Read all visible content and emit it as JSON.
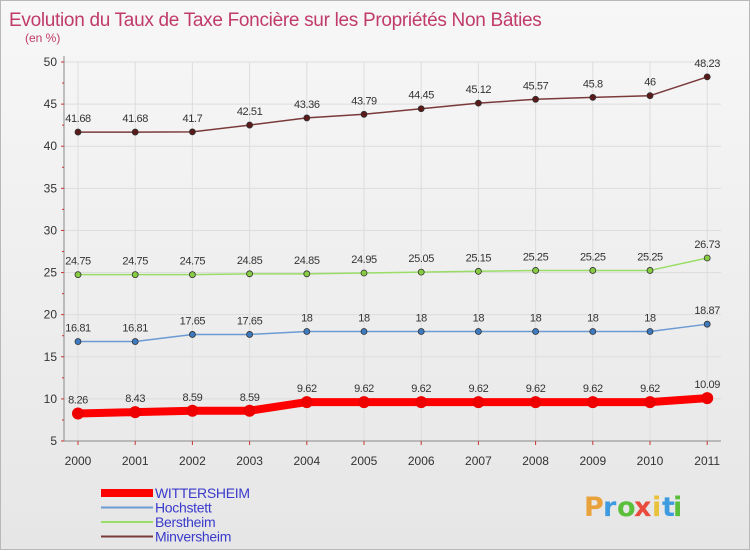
{
  "chart_data": {
    "type": "line",
    "title": "Evolution du Taux de Taxe Foncière sur les Propriétés Non Bâties",
    "subtitle": "(en %)",
    "xlabel": "",
    "ylabel": "(en %)",
    "ylim": [
      5,
      50
    ],
    "yticks": [
      "5",
      "10",
      "15",
      "20",
      "25",
      "30",
      "35",
      "40",
      "45",
      "50"
    ],
    "categories": [
      "2000",
      "2001",
      "2002",
      "2003",
      "2004",
      "2005",
      "2006",
      "2007",
      "2008",
      "2009",
      "2010",
      "2011"
    ],
    "grid": true,
    "legend_position": "bottom-left",
    "series": [
      {
        "name": "WITTERSHEIM",
        "color": "#ff0000",
        "point_color": "#ee0000",
        "emphasis": "thick",
        "values": [
          8.26,
          8.43,
          8.59,
          8.59,
          9.62,
          9.62,
          9.62,
          9.62,
          9.62,
          9.62,
          9.62,
          10.09
        ],
        "labels": [
          "8.26",
          "8.43",
          "8.59",
          "8.59",
          "9.62",
          "9.62",
          "9.62",
          "9.62",
          "9.62",
          "9.62",
          "9.62",
          "10.09"
        ]
      },
      {
        "name": "Hochstett",
        "color": "#6b9bd2",
        "point_color": "#3d7ac0",
        "emphasis": "normal",
        "values": [
          16.81,
          16.81,
          17.65,
          17.65,
          18,
          18,
          18,
          18,
          18,
          18,
          18,
          18.87
        ],
        "labels": [
          "16.81",
          "16.81",
          "17.65",
          "17.65",
          "18",
          "18",
          "18",
          "18",
          "18",
          "18",
          "18",
          "18.87"
        ]
      },
      {
        "name": "Berstheim",
        "color": "#99dd66",
        "point_color": "#88cc44",
        "emphasis": "normal",
        "values": [
          24.75,
          24.75,
          24.75,
          24.85,
          24.85,
          24.95,
          25.05,
          25.15,
          25.25,
          25.25,
          25.25,
          26.73
        ],
        "labels": [
          "24.75",
          "24.75",
          "24.75",
          "24.85",
          "24.85",
          "24.95",
          "25.05",
          "25.15",
          "25.25",
          "25.25",
          "25.25",
          "26.73"
        ]
      },
      {
        "name": "Minversheim",
        "color": "#7a3a3a",
        "point_color": "#5a1a1a",
        "emphasis": "normal",
        "values": [
          41.68,
          41.68,
          41.7,
          42.51,
          43.36,
          43.79,
          44.45,
          45.12,
          45.57,
          45.8,
          46,
          48.23
        ],
        "labels": [
          "41.68",
          "41.68",
          "41.7",
          "42.51",
          "43.36",
          "43.79",
          "44.45",
          "45.12",
          "45.57",
          "45.8",
          "46",
          "48.23"
        ]
      }
    ]
  },
  "watermark": {
    "letters": [
      "P",
      "r",
      "o",
      "x",
      "i",
      "t",
      "i"
    ],
    "colors": [
      "#e9a23b",
      "#3f9be0",
      "#5bbf3c",
      "#e94b3c",
      "#e9c23b",
      "#3f9be0",
      "#5bbf3c"
    ]
  }
}
